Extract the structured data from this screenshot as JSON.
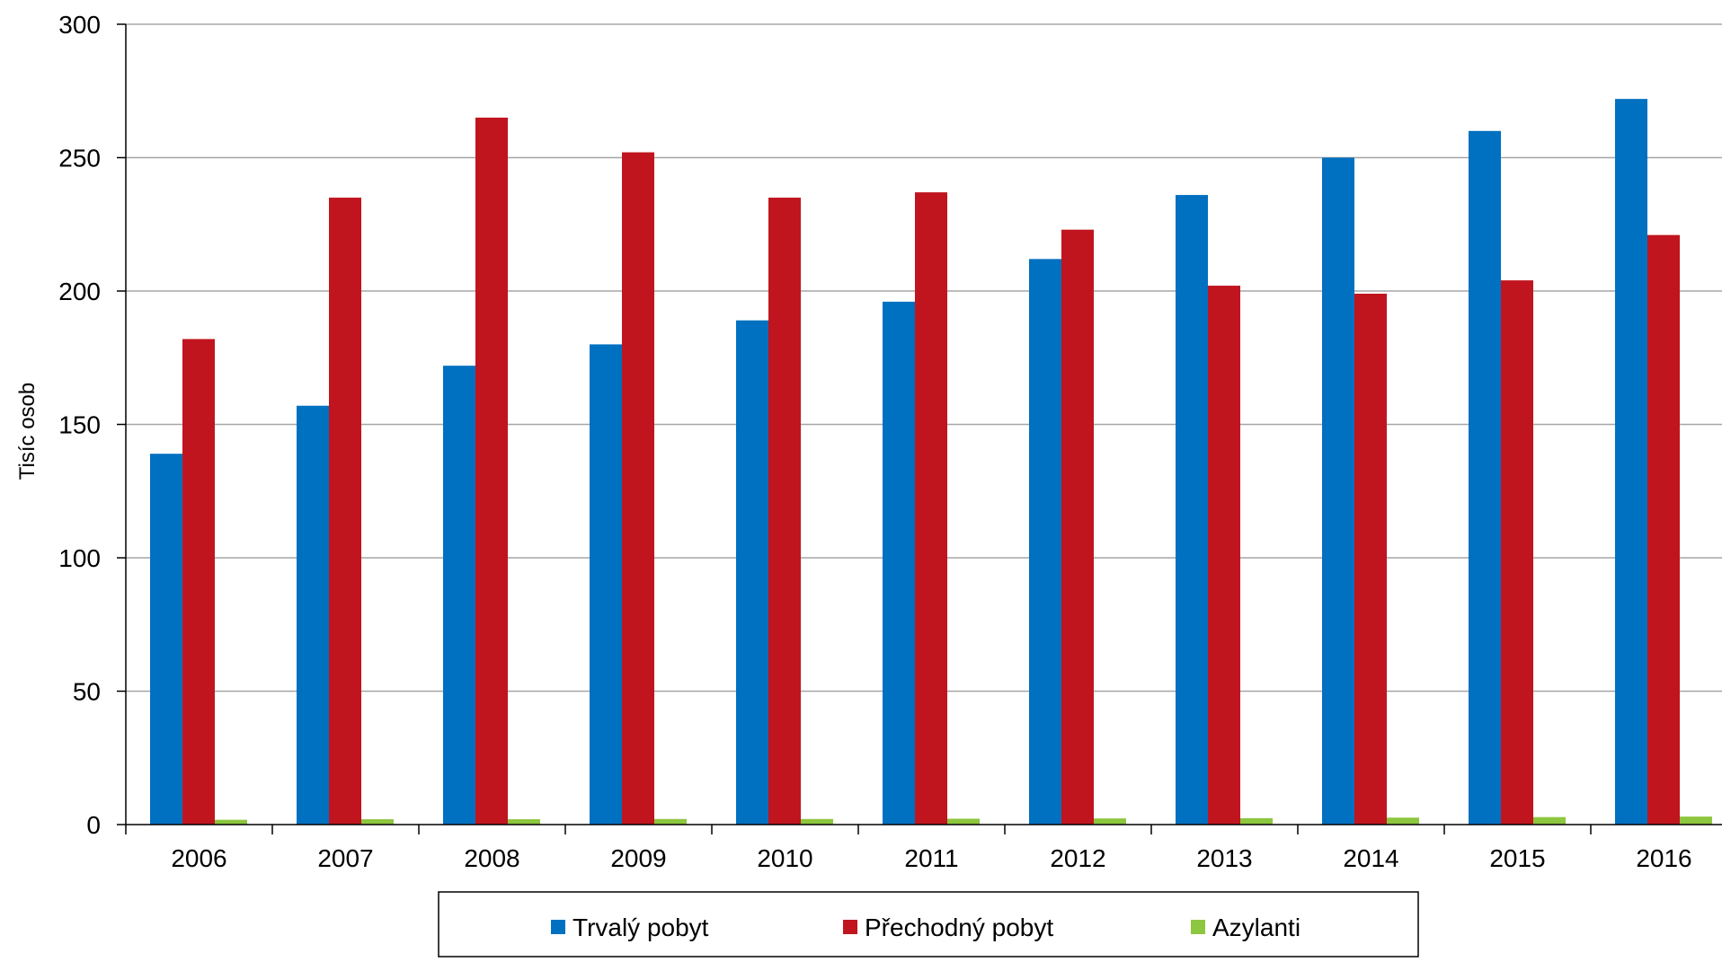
{
  "chart_data": {
    "type": "bar",
    "title": "",
    "xlabel": "",
    "ylabel": "Tisíc osob",
    "ylim": [
      0,
      300
    ],
    "yticks": [
      0,
      50,
      100,
      150,
      200,
      250,
      300
    ],
    "grid": true,
    "legend_position": "bottom",
    "categories": [
      "2006",
      "2007",
      "2008",
      "2009",
      "2010",
      "2011",
      "2012",
      "2013",
      "2014",
      "2015",
      "2016"
    ],
    "series": [
      {
        "name": "Trvalý pobyt",
        "color": "#0070c0",
        "values": [
          139,
          157,
          172,
          180,
          189,
          196,
          212,
          236,
          250,
          260,
          272
        ]
      },
      {
        "name": "Přechodný pobyt",
        "color": "#c0151f",
        "values": [
          182,
          235,
          265,
          252,
          235,
          237,
          223,
          202,
          199,
          204,
          221
        ]
      },
      {
        "name": "Azylanti",
        "color": "#8dc63f",
        "values": [
          1.8,
          2.0,
          2.0,
          2.1,
          2.1,
          2.2,
          2.3,
          2.4,
          2.6,
          2.8,
          3.0
        ]
      }
    ]
  }
}
